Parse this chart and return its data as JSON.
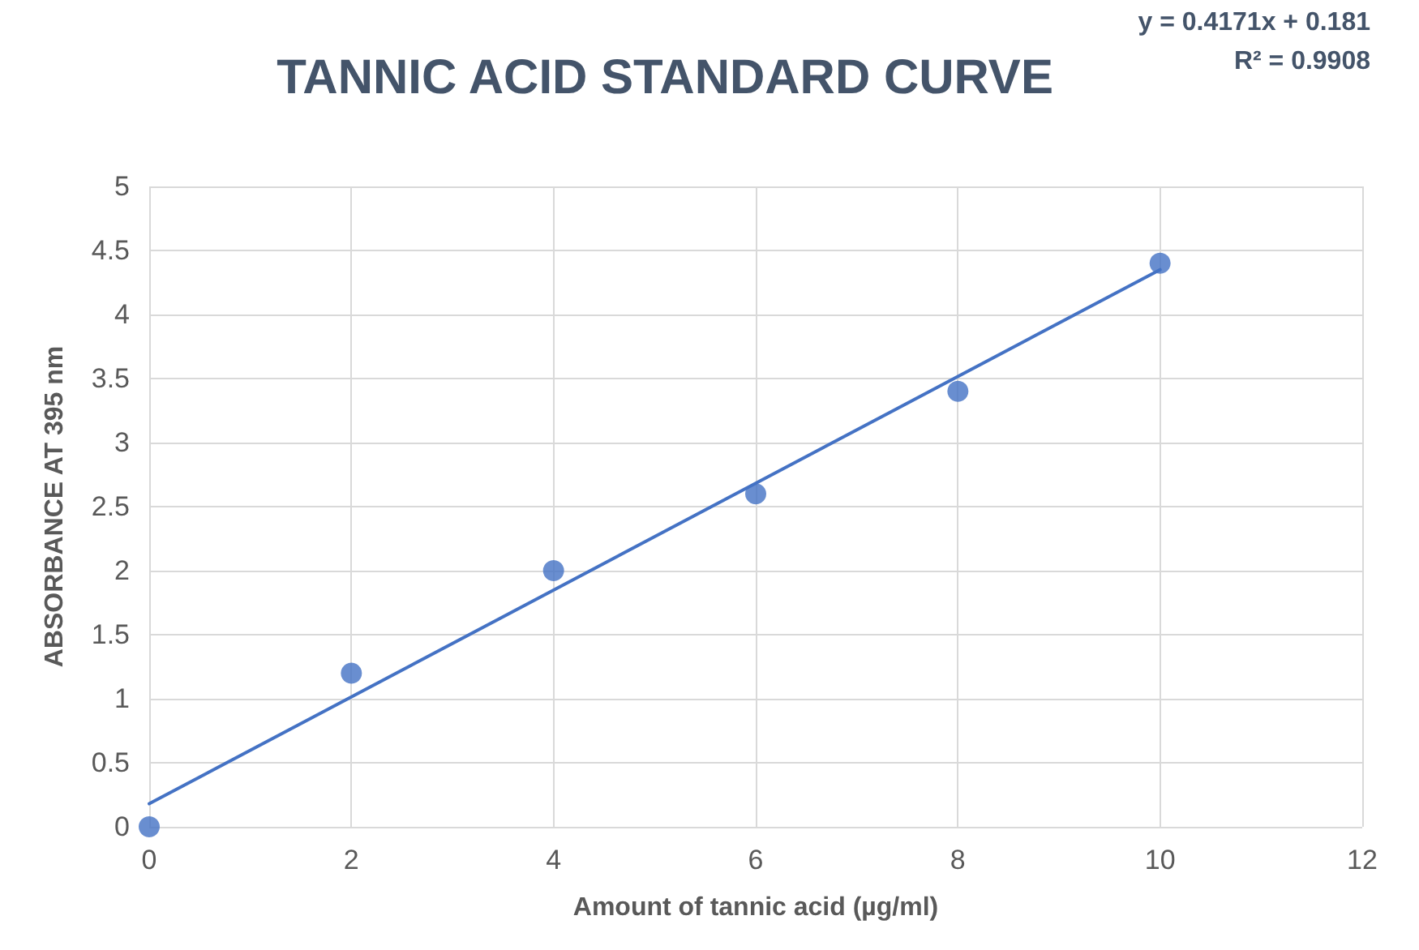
{
  "chart_data": {
    "type": "scatter",
    "title": "TANNIC ACID STANDARD CURVE",
    "xlabel": "Amount of tannic acid (µg/ml)",
    "ylabel": "ABSORBANCE AT 395 nm",
    "annotations": [
      "y = 0.4171x + 0.181",
      "R² = 0.9908"
    ],
    "x": [
      0,
      2,
      4,
      6,
      8,
      10
    ],
    "series": [
      {
        "color": "#4472c4",
        "marker": "circle",
        "values": [
          0,
          1.2,
          2,
          2.6,
          3.4,
          4.4
        ]
      },
      {
        "type": "line",
        "color": "#4472c4",
        "marker": "none",
        "line_style": "solid",
        "x": [
          0,
          10
        ],
        "values": [
          0.18,
          4.35
        ]
      }
    ],
    "xlim": [
      0,
      12
    ],
    "xticks": [
      0,
      2,
      4,
      6,
      8,
      10,
      12
    ],
    "ylim": [
      0,
      5
    ],
    "yticks": [
      0,
      0.5,
      1,
      1.5,
      2,
      2.5,
      3,
      3.5,
      4,
      4.5,
      5
    ],
    "grid": true
  }
}
